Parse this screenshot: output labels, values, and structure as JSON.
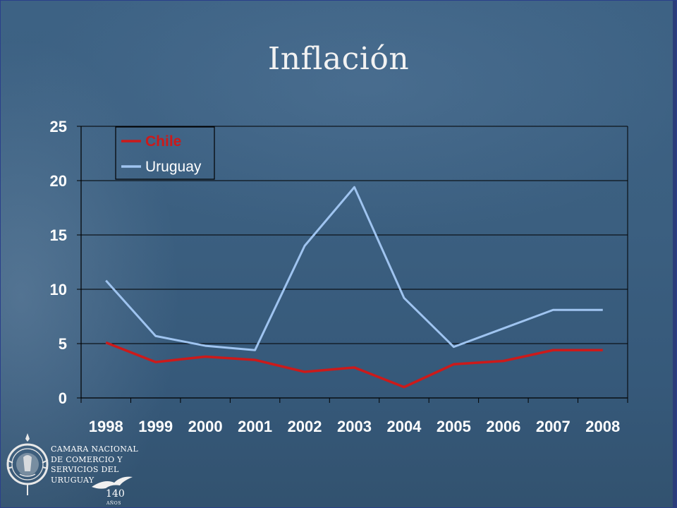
{
  "slide": {
    "title": "Inflación"
  },
  "colors": {
    "chile": "#cc1a1a",
    "uruguay": "#9fc4f0",
    "axis": "#000000",
    "text": "#ffffff"
  },
  "chart_data": {
    "type": "line",
    "title": "",
    "xlabel": "",
    "ylabel": "",
    "categories": [
      "1998",
      "1999",
      "2000",
      "2001",
      "2002",
      "2003",
      "2004",
      "2005",
      "2006",
      "2007",
      "2008"
    ],
    "series": [
      {
        "name": "Chile",
        "color": "#cc1a1a",
        "values": [
          5.1,
          3.3,
          3.8,
          3.5,
          2.4,
          2.8,
          1.0,
          3.1,
          3.4,
          4.4,
          4.4
        ]
      },
      {
        "name": "Uruguay",
        "color": "#9fc4f0",
        "values": [
          10.8,
          5.7,
          4.8,
          4.4,
          14.0,
          19.4,
          9.2,
          4.7,
          6.4,
          8.1,
          8.1
        ]
      }
    ],
    "yticks": [
      "0",
      "5",
      "10",
      "15",
      "20",
      "25"
    ],
    "ylim": [
      0,
      25
    ],
    "grid": true,
    "legend_position": "top-left"
  },
  "organization": {
    "name_lines": [
      "CAMARA NACIONAL",
      "DE COMERCIO Y",
      "SERVICIOS DEL",
      "URUGUAY"
    ],
    "anniversary_number": "140",
    "anniversary_word": "AÑOS"
  }
}
